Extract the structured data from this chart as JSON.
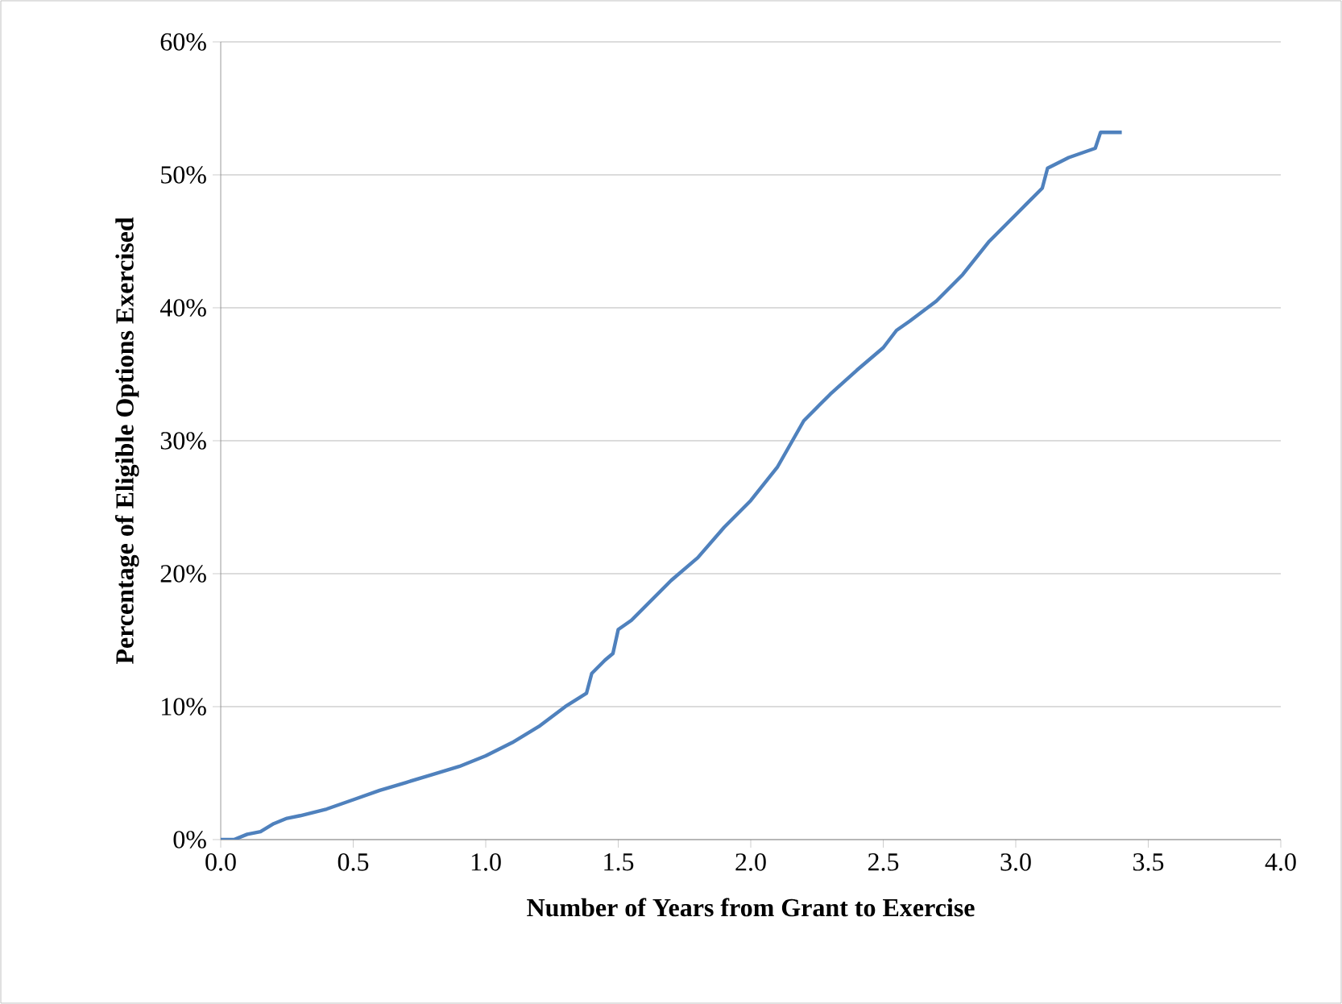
{
  "chart_data": {
    "type": "line",
    "xlabel": "Number of Years from Grant to Exercise",
    "ylabel": "Percentage of Eligible Options Exercised",
    "x": [
      0,
      0.05,
      0.1,
      0.15,
      0.2,
      0.25,
      0.3,
      0.4,
      0.5,
      0.6,
      0.7,
      0.8,
      0.9,
      1.0,
      1.1,
      1.2,
      1.3,
      1.38,
      1.4,
      1.45,
      1.48,
      1.5,
      1.55,
      1.6,
      1.7,
      1.8,
      1.9,
      2.0,
      2.1,
      2.2,
      2.3,
      2.4,
      2.5,
      2.55,
      2.6,
      2.7,
      2.8,
      2.9,
      3.0,
      3.1,
      3.12,
      3.2,
      3.3,
      3.32,
      3.4
    ],
    "series": [
      {
        "color": "#4f81bd",
        "values": [
          0,
          0,
          0.4,
          0.6,
          1.2,
          1.6,
          1.8,
          2.3,
          3.0,
          3.7,
          4.3,
          4.9,
          5.5,
          6.3,
          7.3,
          8.5,
          10.0,
          11.0,
          12.5,
          13.5,
          14.0,
          15.8,
          16.5,
          17.5,
          19.5,
          21.2,
          23.5,
          25.5,
          28,
          31.5,
          33.5,
          35.3,
          37,
          38.3,
          39,
          40.5,
          42.5,
          45,
          47,
          49,
          50.5,
          51.3,
          52,
          53.2,
          53.2
        ]
      }
    ],
    "xlim": [
      0,
      4
    ],
    "xticks": [
      {
        "value": 0,
        "label": "0.0"
      },
      0.5,
      {
        "value": 1,
        "label": "1.0"
      },
      1.5,
      {
        "value": 2,
        "label": "2.0"
      },
      2.5,
      {
        "value": 3,
        "label": "3.0"
      },
      3.5,
      {
        "value": 4,
        "label": "4.0"
      }
    ],
    "ylim": [
      0,
      60
    ],
    "yticks": [
      {
        "value": 0,
        "label": "0%"
      },
      {
        "value": 10,
        "label": "10%"
      },
      {
        "value": 20,
        "label": "20%"
      },
      {
        "value": 30,
        "label": "30%"
      },
      {
        "value": 40,
        "label": "40%"
      },
      {
        "value": 50,
        "label": "50%"
      },
      {
        "value": 60,
        "label": "60%"
      }
    ],
    "grid": "y",
    "marker": "none",
    "line_style": "solid"
  }
}
